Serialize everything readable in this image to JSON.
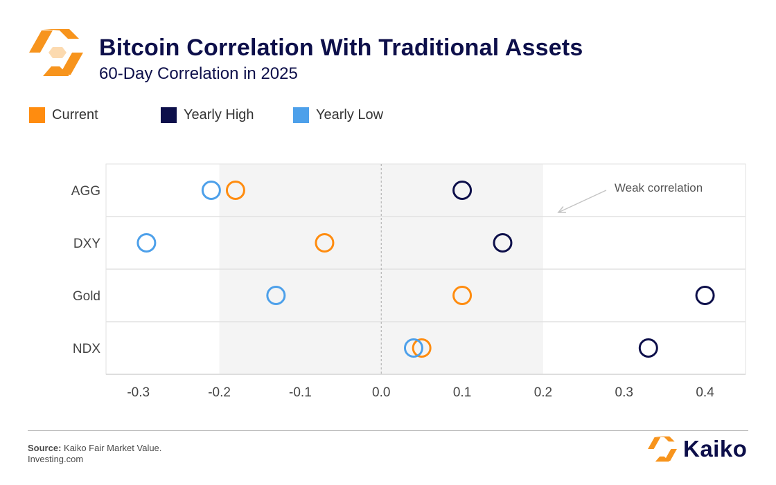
{
  "header": {
    "title": "Bitcoin Correlation With Traditional Assets",
    "subtitle": "60-Day Correlation in 2025"
  },
  "colors": {
    "current": "#ff8c0f",
    "yearly_high": "#0d0f4a",
    "yearly_low": "#4da0ea",
    "shaded_band": "#f4f4f4",
    "brand_orange": "#f7941d"
  },
  "chart_data": {
    "type": "scatter",
    "title": "Bitcoin Correlation With Traditional Assets",
    "subtitle": "60-Day Correlation in 2025",
    "categories": [
      "AGG",
      "DXY",
      "Gold",
      "NDX"
    ],
    "series": [
      {
        "name": "Current",
        "color": "#ff8c0f",
        "values": [
          -0.18,
          -0.07,
          0.1,
          0.05
        ]
      },
      {
        "name": "Yearly High",
        "color": "#0d0f4a",
        "values": [
          0.1,
          0.15,
          0.4,
          0.33
        ]
      },
      {
        "name": "Yearly Low",
        "color": "#4da0ea",
        "values": [
          -0.21,
          -0.29,
          -0.13,
          0.04
        ]
      }
    ],
    "xlim": [
      -0.34,
      0.45
    ],
    "xticks": [
      -0.3,
      -0.2,
      -0.1,
      0.0,
      0.1,
      0.2,
      0.3,
      0.4
    ],
    "xtick_labels": [
      "-0.3",
      "-0.2",
      "-0.1",
      "0.0",
      "0.1",
      "0.2",
      "0.3",
      "0.4"
    ],
    "shaded_range": [
      -0.2,
      0.2
    ],
    "zero_line": true,
    "annotation": {
      "text": "Weak correlation"
    },
    "legend_position": "top-left",
    "xlabel": "",
    "ylabel": ""
  },
  "footer": {
    "source_label": "Source:",
    "source_text": "Kaiko Fair Market Value.",
    "source_line2": "Investing.com",
    "brand_name": "Kaiko"
  }
}
